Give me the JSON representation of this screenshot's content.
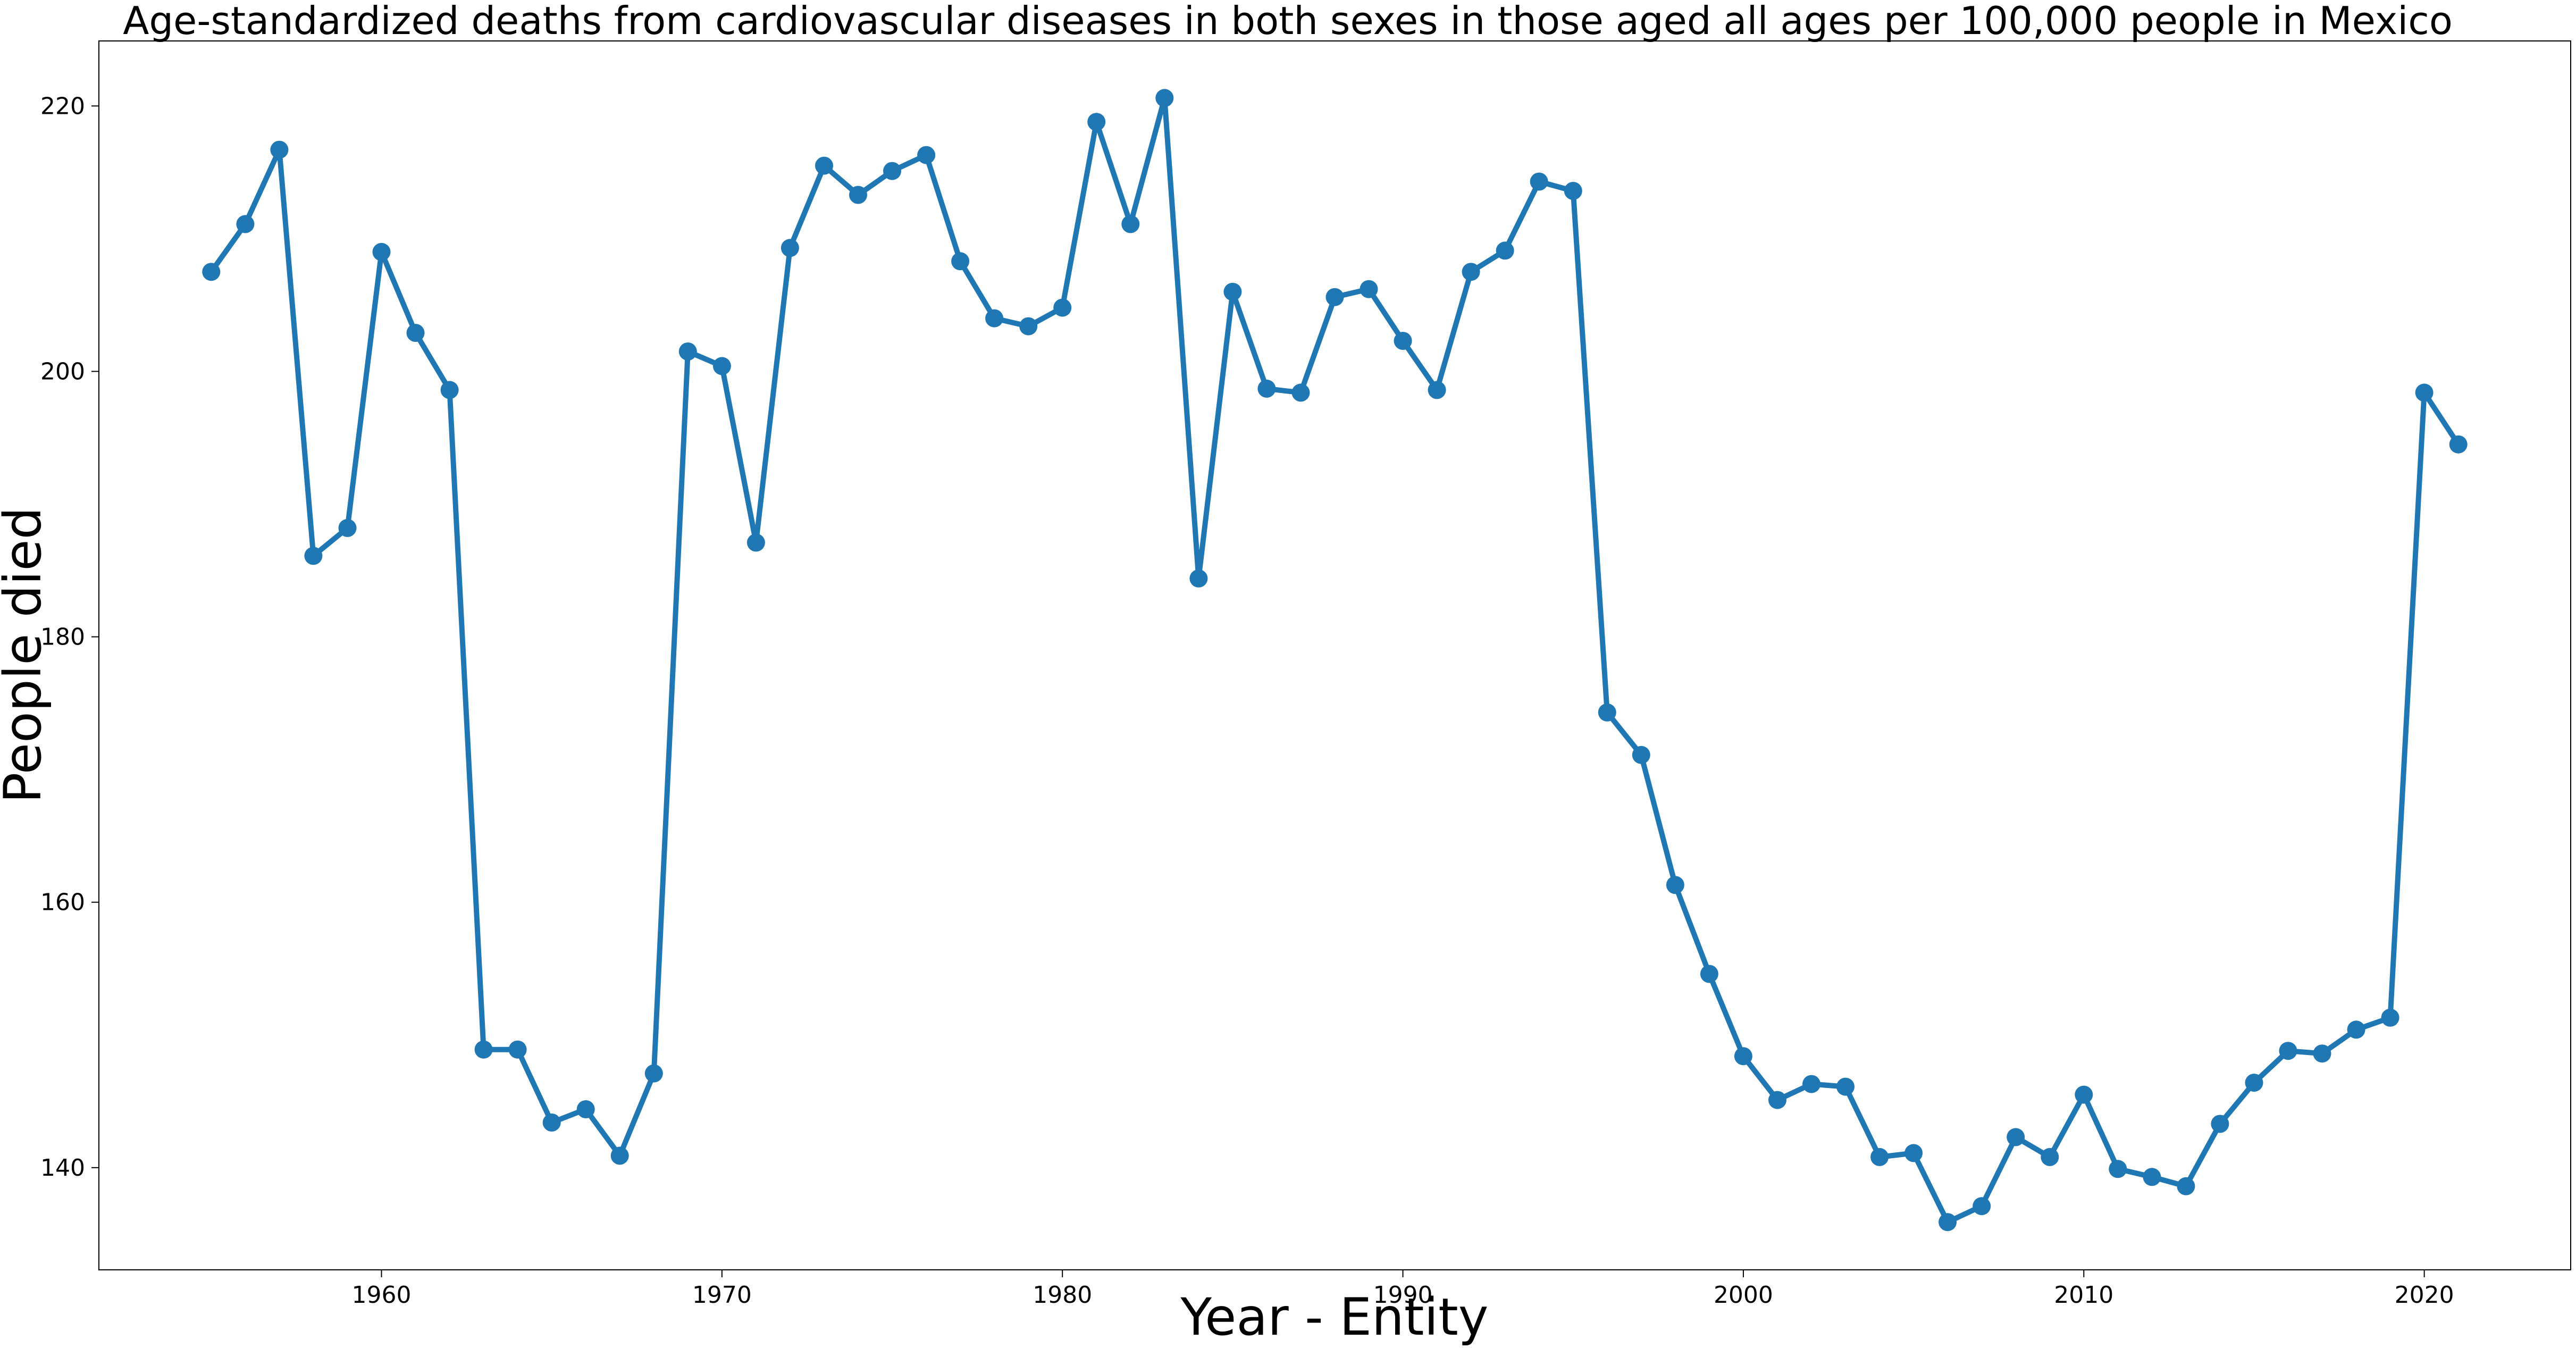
{
  "chart_data": {
    "type": "line",
    "title": "Age-standardized deaths from cardiovascular diseases in both sexes in those aged all ages per 100,000 people in Mexico",
    "xlabel": "Year - Entity",
    "ylabel": "People died",
    "xlim": [
      1951.7,
      2024.3
    ],
    "ylim": [
      132.3,
      224.9
    ],
    "xticks": [
      1960,
      1970,
      1980,
      1990,
      2000,
      2010,
      2020
    ],
    "yticks": [
      140,
      160,
      180,
      200,
      220
    ],
    "grid": false,
    "color": "#1f77b4",
    "x": [
      1955,
      1956,
      1957,
      1958,
      1959,
      1960,
      1961,
      1962,
      1963,
      1964,
      1965,
      1966,
      1967,
      1968,
      1969,
      1970,
      1971,
      1972,
      1973,
      1974,
      1975,
      1976,
      1977,
      1978,
      1979,
      1980,
      1981,
      1982,
      1983,
      1984,
      1985,
      1986,
      1987,
      1988,
      1989,
      1990,
      1991,
      1992,
      1993,
      1994,
      1995,
      1996,
      1997,
      1998,
      1999,
      2000,
      2001,
      2002,
      2003,
      2004,
      2005,
      2006,
      2007,
      2008,
      2009,
      2010,
      2011,
      2012,
      2013,
      2014,
      2015,
      2016,
      2017,
      2018,
      2019,
      2020,
      2021
    ],
    "y": [
      207.5,
      211.1,
      216.7,
      186.1,
      188.2,
      209.0,
      202.9,
      198.6,
      148.9,
      148.9,
      143.4,
      144.4,
      140.9,
      147.1,
      201.5,
      200.4,
      187.1,
      209.3,
      215.5,
      213.3,
      215.1,
      216.3,
      208.3,
      204.0,
      203.4,
      204.8,
      218.8,
      211.1,
      220.6,
      184.4,
      206.0,
      198.7,
      198.4,
      205.6,
      206.2,
      202.3,
      198.6,
      207.5,
      209.1,
      214.3,
      213.6,
      174.3,
      171.1,
      161.3,
      154.6,
      148.4,
      145.1,
      146.3,
      146.1,
      140.8,
      141.1,
      135.9,
      137.1,
      142.3,
      140.8,
      145.5,
      139.9,
      139.3,
      138.6,
      143.3,
      146.4,
      148.8,
      148.6,
      150.4,
      151.3,
      198.4,
      194.5
    ]
  }
}
